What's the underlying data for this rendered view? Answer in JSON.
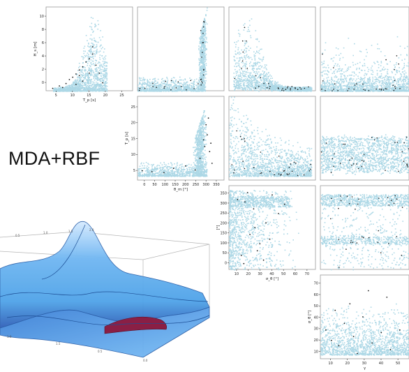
{
  "figure_label": "MDA+RBF",
  "colors": {
    "cloud": "#add8e6",
    "sample": "#1a1a1a",
    "surface": "#4fa3e8",
    "surface_dark": "#2f5fb8",
    "surface_red": "#8a1f45"
  },
  "chart_data": [
    {
      "type": "scatter",
      "panel": "Hs-Tp",
      "xlabel": "T_p [s]",
      "ylabel": "H_s [m]",
      "xticks": [
        "5",
        "10",
        "15",
        "20",
        "25"
      ],
      "yticks": [
        "0",
        "2",
        "4",
        "6",
        "8",
        "10"
      ],
      "xlim": [
        2,
        28
      ],
      "ylim": [
        0,
        10.5
      ],
      "samples": [
        [
          4,
          0.3
        ],
        [
          6,
          0.6
        ],
        [
          8,
          0.9
        ],
        [
          9,
          1.4
        ],
        [
          10,
          1.7
        ],
        [
          11,
          2.1
        ],
        [
          12,
          2.6
        ],
        [
          13,
          3.0
        ],
        [
          14,
          3.6
        ],
        [
          15,
          4.0
        ],
        [
          16,
          4.6
        ],
        [
          17,
          3.2
        ],
        [
          18,
          2.2
        ],
        [
          13,
          1.2
        ],
        [
          11,
          0.8
        ],
        [
          15,
          2.2
        ],
        [
          16,
          5.5
        ],
        [
          7,
          0.4
        ],
        [
          19,
          1.0
        ],
        [
          12,
          1.9
        ]
      ]
    },
    {
      "type": "scatter",
      "panel": "Hs-theta_m",
      "ylabel": "",
      "xlabel": ""
    },
    {
      "type": "scatter",
      "panel": "Hs-sigma_theta",
      "ylabel": "",
      "xlabel": ""
    },
    {
      "type": "scatter",
      "panel": "Hs-gamma",
      "ylabel": "",
      "xlabel": ""
    },
    {
      "type": "scatter",
      "panel": "Tp-theta_m",
      "xlabel": "θ_m [°]",
      "ylabel": "T_p [s]",
      "xticks": [
        "0",
        "50",
        "100",
        "150",
        "200",
        "250",
        "300",
        "350"
      ],
      "yticks": [
        "5",
        "10",
        "15",
        "20",
        "25"
      ],
      "xlim": [
        0,
        360
      ],
      "ylim": [
        2,
        27
      ],
      "samples": [
        [
          20,
          4.8
        ],
        [
          60,
          4.5
        ],
        [
          110,
          4.2
        ],
        [
          150,
          5.5
        ],
        [
          200,
          6.2
        ],
        [
          260,
          8.5
        ],
        [
          280,
          12.0
        ],
        [
          290,
          15.5
        ],
        [
          300,
          10.5
        ],
        [
          310,
          7.0
        ],
        [
          285,
          18.5
        ],
        [
          295,
          20.5
        ],
        [
          240,
          5.0
        ],
        [
          275,
          14.0
        ],
        [
          305,
          13.0
        ]
      ]
    },
    {
      "type": "scatter",
      "panel": "Tp-sigma_theta",
      "xlabel": "",
      "ylabel": ""
    },
    {
      "type": "scatter",
      "panel": "Tp-gamma",
      "xlabel": "",
      "ylabel": ""
    },
    {
      "type": "scatter",
      "panel": "theta_m-sigma_theta",
      "xlabel": "σ_θ [°]",
      "ylabel": "[°]",
      "xticks": [
        "10",
        "20",
        "30",
        "40",
        "50",
        "60",
        "70"
      ],
      "yticks": [
        "0",
        "50",
        "100",
        "150",
        "200",
        "250",
        "300",
        "350"
      ],
      "xlim": [
        5,
        75
      ],
      "ylim": [
        0,
        360
      ],
      "samples": [
        [
          12,
          300
        ],
        [
          18,
          290
        ],
        [
          25,
          260
        ],
        [
          22,
          150
        ],
        [
          30,
          110
        ],
        [
          35,
          200
        ],
        [
          15,
          60
        ],
        [
          40,
          320
        ],
        [
          28,
          80
        ],
        [
          45,
          240
        ],
        [
          20,
          330
        ],
        [
          33,
          40
        ],
        [
          50,
          280
        ],
        [
          26,
          180
        ],
        [
          38,
          130
        ],
        [
          17,
          25
        ]
      ]
    },
    {
      "type": "scatter",
      "panel": "theta_m-gamma",
      "xlabel": "",
      "ylabel": ""
    },
    {
      "type": "scatter",
      "panel": "sigma_theta-gamma",
      "xlabel": "γ",
      "ylabel": "σ_θ [°]",
      "xticks": [
        "10",
        "20",
        "30",
        "40",
        "50"
      ],
      "yticks": [
        "10",
        "20",
        "30",
        "40",
        "50",
        "60",
        "70"
      ],
      "xlim": [
        2,
        50
      ],
      "ylim": [
        8,
        72
      ],
      "samples": [
        [
          5,
          30
        ],
        [
          8,
          22
        ],
        [
          12,
          18
        ],
        [
          15,
          35
        ],
        [
          20,
          25
        ],
        [
          25,
          40
        ],
        [
          30,
          20
        ],
        [
          35,
          28
        ],
        [
          40,
          15
        ],
        [
          45,
          30
        ],
        [
          18,
          50
        ],
        [
          28,
          60
        ],
        [
          10,
          45
        ],
        [
          38,
          55
        ],
        [
          22,
          12
        ]
      ]
    }
  ],
  "surface_ticks": {
    "front": [
      "1.0",
      "1.5",
      "0.5",
      "0.0"
    ],
    "back": [
      "0.5",
      "1.0",
      "1.5",
      "2.0"
    ]
  }
}
